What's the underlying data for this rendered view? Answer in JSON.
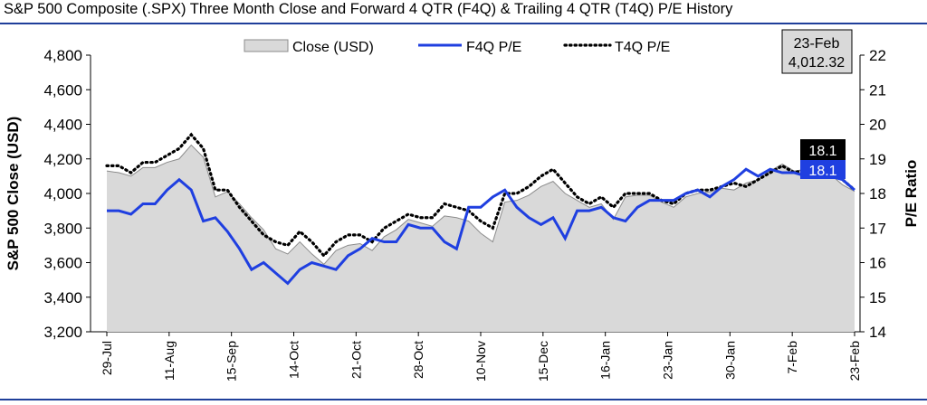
{
  "title": "S&P 500 Composite (.SPX) Three Month Close and Forward 4 QTR (F4Q) & Trailing 4 QTR (T4Q) P/E History",
  "colors": {
    "rule": "#1f3f9a",
    "close_fill": "#d9d9d9",
    "close_stroke": "#8c8c8c",
    "f4q": "#1f3fe0",
    "t4q": "#000000",
    "f4q_label_bg": "#1f3fe0",
    "t4q_label_bg": "#000000"
  },
  "chart_data": {
    "type": "area",
    "title": "S&P 500 Composite (.SPX) Three Month Close and Forward 4 QTR (F4Q) & Trailing 4 QTR (T4Q) P/E History",
    "x_ticks": [
      "29-Jul",
      "11-Aug",
      "15-Sep",
      "14-Oct",
      "21-Oct",
      "28-Oct",
      "10-Nov",
      "15-Dec",
      "16-Jan",
      "23-Jan",
      "30-Jan",
      "7-Feb",
      "23-Feb"
    ],
    "ylabel_left": "S&P 500 Close (USD)",
    "ylabel_right": "P/E Ratio",
    "ylim_left": [
      3200,
      4800
    ],
    "yticks_left": [
      "3,200",
      "3,400",
      "3,600",
      "3,800",
      "4,000",
      "4,200",
      "4,400",
      "4,600",
      "4,800"
    ],
    "ylim_right": [
      14,
      22
    ],
    "yticks_right": [
      "14",
      "15",
      "16",
      "17",
      "18",
      "19",
      "20",
      "21",
      "22"
    ],
    "legend_position": "top",
    "series": [
      {
        "name": "Close (USD)",
        "axis": "left",
        "values": [
          4130,
          4120,
          4100,
          4150,
          4150,
          4180,
          4200,
          4280,
          4210,
          3980,
          4010,
          3940,
          3860,
          3790,
          3680,
          3650,
          3720,
          3650,
          3590,
          3670,
          3700,
          3710,
          3670,
          3750,
          3790,
          3850,
          3830,
          3810,
          3870,
          3860,
          3840,
          3770,
          3720,
          3950,
          3960,
          3990,
          4040,
          4070,
          4000,
          3960,
          3920,
          3940,
          3850,
          3980,
          3990,
          3990,
          3950,
          3920,
          3980,
          4000,
          4010,
          4030,
          4020,
          4060,
          4080,
          4130,
          4170,
          4130,
          4140,
          4120,
          4110,
          4050,
          4012.32
        ]
      },
      {
        "name": "F4Q P/E",
        "axis": "right",
        "values": [
          17.5,
          17.5,
          17.4,
          17.7,
          17.7,
          18.1,
          18.4,
          18.1,
          17.2,
          17.3,
          16.9,
          16.4,
          15.8,
          16.0,
          15.7,
          15.4,
          15.8,
          16.0,
          15.9,
          15.8,
          16.2,
          16.4,
          16.7,
          16.6,
          16.6,
          17.1,
          17.0,
          17.0,
          16.6,
          16.4,
          17.6,
          17.6,
          17.9,
          18.1,
          17.6,
          17.3,
          17.1,
          17.3,
          16.7,
          17.5,
          17.5,
          17.6,
          17.3,
          17.2,
          17.6,
          17.8,
          17.8,
          17.8,
          18.0,
          18.1,
          17.9,
          18.2,
          18.4,
          18.7,
          18.5,
          18.7,
          18.6,
          18.6,
          18.5,
          18.6,
          18.5,
          18.4,
          18.1
        ]
      },
      {
        "name": "T4Q P/E",
        "axis": "right",
        "values": [
          18.8,
          18.8,
          18.6,
          18.9,
          18.9,
          19.1,
          19.3,
          19.7,
          19.3,
          18.1,
          18.1,
          17.6,
          17.2,
          16.8,
          16.6,
          16.5,
          16.9,
          16.6,
          16.2,
          16.6,
          16.8,
          16.8,
          16.6,
          17.0,
          17.2,
          17.4,
          17.3,
          17.3,
          17.7,
          17.6,
          17.5,
          17.2,
          17.0,
          18.0,
          18.0,
          18.2,
          18.5,
          18.7,
          18.3,
          17.9,
          17.7,
          17.9,
          17.6,
          18.0,
          18.0,
          18.0,
          17.8,
          17.7,
          18.0,
          18.1,
          18.1,
          18.2,
          18.3,
          18.2,
          18.4,
          18.6,
          18.8,
          18.6,
          18.7,
          18.6,
          18.6,
          18.4,
          18.1
        ]
      }
    ],
    "callout": {
      "date": "23-Feb",
      "value": "4,012.32"
    },
    "end_labels": {
      "t4q": "18.1",
      "f4q": "18.1"
    }
  }
}
